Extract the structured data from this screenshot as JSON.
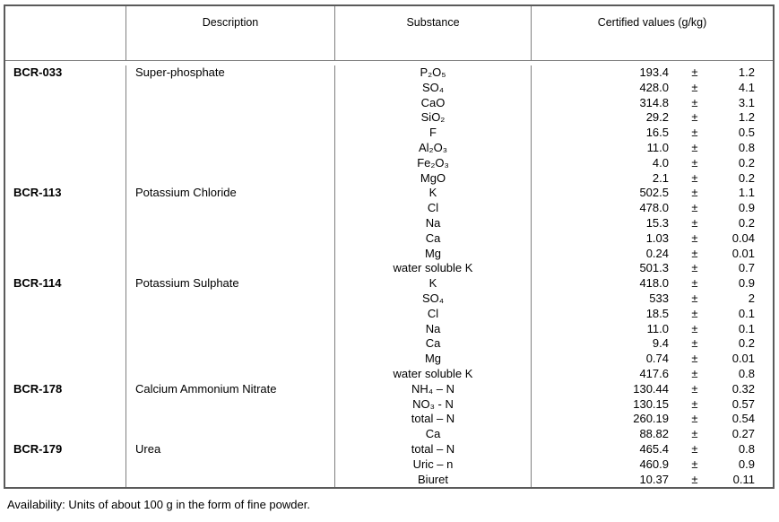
{
  "plus_minus": "±",
  "header": {
    "columns": [
      "",
      "Description",
      "Substance",
      "Certified values (g/kg)"
    ]
  },
  "blocks": [
    {
      "code": "BCR-033",
      "description": "Super-phosphate",
      "rows": [
        {
          "substance": "P₂O₅",
          "value": "193.4",
          "uncertainty": "1.2"
        },
        {
          "substance": "SO₄",
          "value": "428.0",
          "uncertainty": "4.1"
        },
        {
          "substance": "CaO",
          "value": "314.8",
          "uncertainty": "3.1"
        },
        {
          "substance": "SiO₂",
          "value": "29.2",
          "uncertainty": "1.2"
        },
        {
          "substance": "F",
          "value": "16.5",
          "uncertainty": "0.5"
        },
        {
          "substance": "Al₂O₃",
          "value": "11.0",
          "uncertainty": "0.8"
        },
        {
          "substance": "Fe₂O₃",
          "value": "4.0",
          "uncertainty": "0.2"
        },
        {
          "substance": "MgO",
          "value": "2.1",
          "uncertainty": "0.2"
        }
      ]
    },
    {
      "code": "BCR-113",
      "description": "Potassium Chloride",
      "rows": [
        {
          "substance": "K",
          "value": "502.5",
          "uncertainty": "1.1"
        },
        {
          "substance": "Cl",
          "value": "478.0",
          "uncertainty": "0.9"
        },
        {
          "substance": "Na",
          "value": "15.3",
          "uncertainty": "0.2"
        },
        {
          "substance": "Ca",
          "value": "1.03",
          "uncertainty": "0.04"
        },
        {
          "substance": "Mg",
          "value": "0.24",
          "uncertainty": "0.01"
        },
        {
          "substance": "water soluble K",
          "value": "501.3",
          "uncertainty": "0.7"
        }
      ]
    },
    {
      "code": "BCR-114",
      "description": "Potassium Sulphate",
      "rows": [
        {
          "substance": "K",
          "value": "418.0",
          "uncertainty": "0.9"
        },
        {
          "substance": "SO₄",
          "value": "533",
          "uncertainty": "2"
        },
        {
          "substance": "Cl",
          "value": "18.5",
          "uncertainty": "0.1"
        },
        {
          "substance": "Na",
          "value": "11.0",
          "uncertainty": "0.1"
        },
        {
          "substance": "Ca",
          "value": "9.4",
          "uncertainty": "0.2"
        },
        {
          "substance": "Mg",
          "value": "0.74",
          "uncertainty": "0.01"
        },
        {
          "substance": "water soluble K",
          "value": "417.6",
          "uncertainty": "0.8"
        }
      ]
    },
    {
      "code": "BCR-178",
      "description": "Calcium Ammonium Nitrate",
      "rows": [
        {
          "substance": "NH₄ – N",
          "value": "130.44",
          "uncertainty": "0.32"
        },
        {
          "substance": "NO₃ - N",
          "value": "130.15",
          "uncertainty": "0.57"
        },
        {
          "substance": "total – N",
          "value": "260.19",
          "uncertainty": "0.54"
        },
        {
          "substance": "Ca",
          "value": "88.82",
          "uncertainty": "0.27"
        }
      ]
    },
    {
      "code": "BCR-179",
      "description": "Urea",
      "rows": [
        {
          "substance": "total – N",
          "value": "465.4",
          "uncertainty": "0.8"
        },
        {
          "substance": "Uric – n",
          "value": "460.9",
          "uncertainty": "0.9"
        },
        {
          "substance": "Biuret",
          "value": "10.37",
          "uncertainty": "0.11"
        }
      ]
    }
  ],
  "footer": {
    "availability": "Availability: Units of about 100 g in the form of fine powder."
  },
  "colors": {
    "border_outer": "#5a5a5a",
    "border_inner": "#7f7f7f",
    "text": "#000000",
    "background": "#ffffff"
  }
}
